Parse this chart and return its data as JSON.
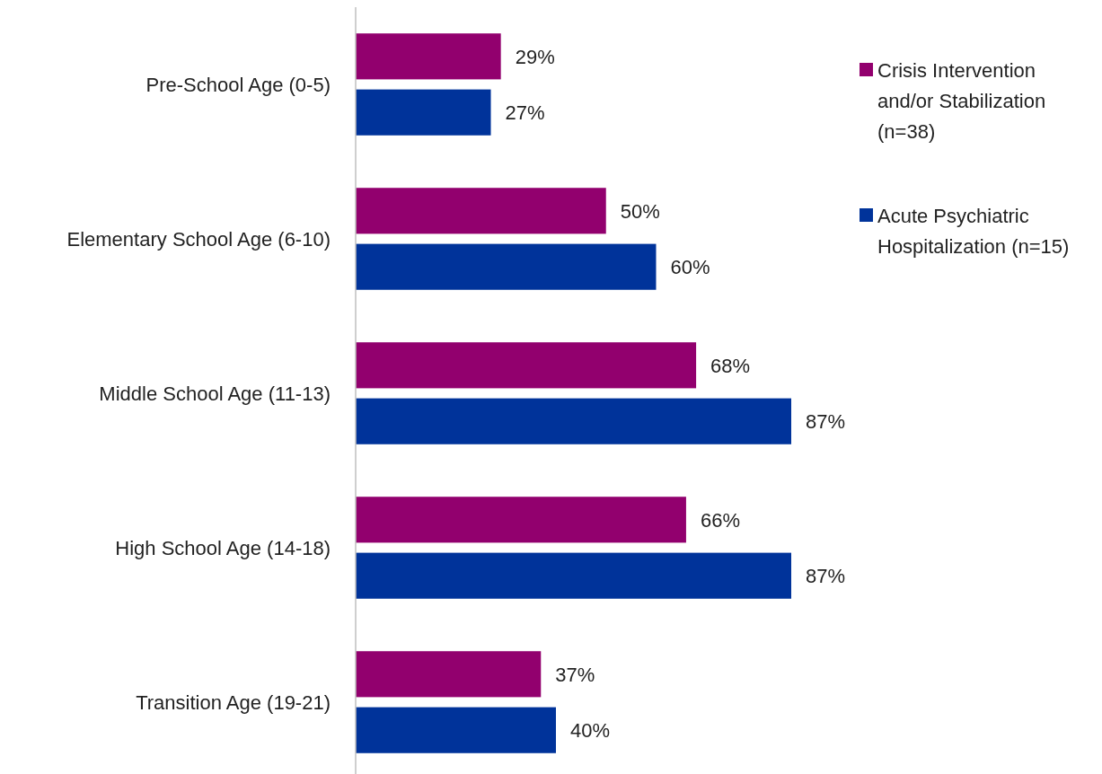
{
  "chart_data": {
    "type": "bar",
    "orientation": "horizontal",
    "categories": [
      "Pre-School Age (0-5)",
      "Elementary School Age (6-10)",
      "Middle School Age (11-13)",
      "High School Age (14-18)",
      "Transition Age (19-21)"
    ],
    "series": [
      {
        "name": "Crisis Intervention and/or Stabilization (n=38)",
        "color": "#92006e",
        "values": [
          29,
          50,
          68,
          66,
          37
        ],
        "value_labels": [
          "29%",
          "50%",
          "68%",
          "66%",
          "37%"
        ]
      },
      {
        "name": "Acute Psychiatric Hospitalization (n=15)",
        "color": "#00339a",
        "values": [
          27,
          60,
          87,
          87,
          40
        ],
        "value_labels": [
          "27%",
          "60%",
          "87%",
          "87%",
          "40%"
        ]
      }
    ],
    "legend": "right"
  }
}
